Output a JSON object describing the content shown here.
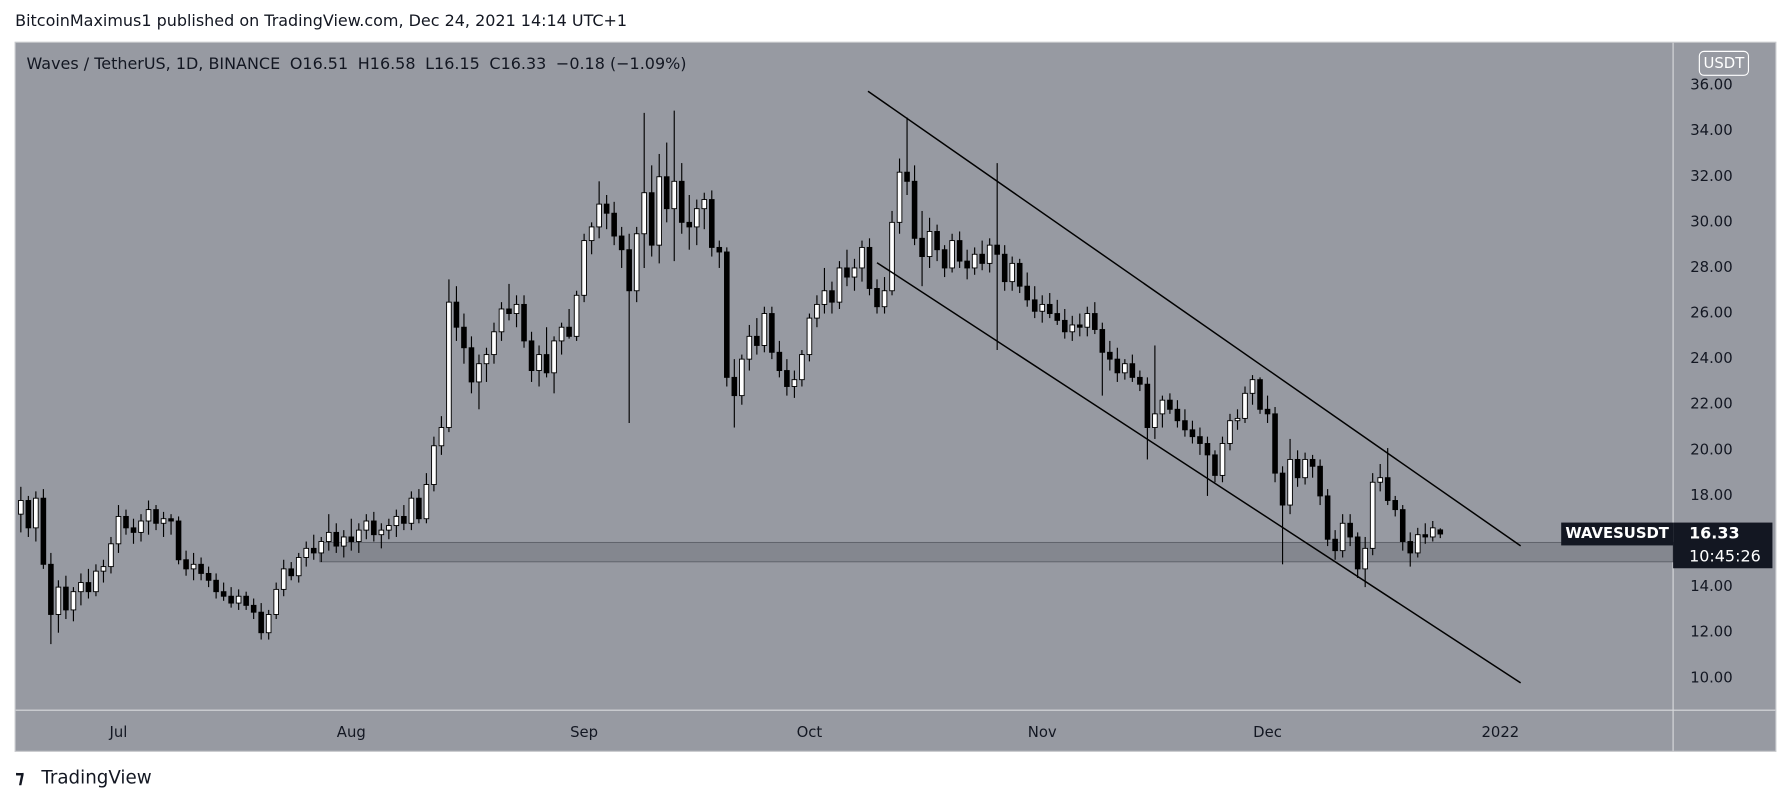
{
  "header": {
    "text": "BitcoinMaximus1 published on TradingView.com, Dec 24, 2021 14:14 UTC+1"
  },
  "footer": {
    "logo": "TradingView"
  },
  "chart_data": {
    "type": "candlestick",
    "title": "Waves / TetherUS, 1D, BINANCE",
    "ohlc_labels": [
      "O",
      "H",
      "L",
      "C"
    ],
    "change": "−0.18 (−1.09%)",
    "currency": "USDT",
    "symbol": "WAVESUSDT",
    "countdown": "10:45:26",
    "up_color": "#ffffff",
    "down_color": "#000000",
    "background": "#979aa2",
    "grid": false,
    "xlim": [
      -0.76,
      220
    ],
    "xticks": [
      {
        "value": 13,
        "label": "Jul"
      },
      {
        "value": 44,
        "label": "Aug"
      },
      {
        "value": 75,
        "label": "Sep"
      },
      {
        "value": 105,
        "label": "Oct"
      },
      {
        "value": 136,
        "label": "Nov"
      },
      {
        "value": 166,
        "label": "Dec"
      },
      {
        "value": 197,
        "label": "2022"
      }
    ],
    "ylim": [
      8.6,
      37.9
    ],
    "yticks": [
      {
        "value": 10,
        "label": "10.00"
      },
      {
        "value": 12,
        "label": "12.00"
      },
      {
        "value": 14,
        "label": "14.00"
      },
      {
        "value": 16,
        "label": "16.00"
      },
      {
        "value": 18,
        "label": "18.00"
      },
      {
        "value": 20,
        "label": "20.00"
      },
      {
        "value": 22,
        "label": "22.00"
      },
      {
        "value": 24,
        "label": "24.00"
      },
      {
        "value": 26,
        "label": "26.00"
      },
      {
        "value": 28,
        "label": "28.00"
      },
      {
        "value": 30,
        "label": "30.00"
      },
      {
        "value": 32,
        "label": "32.00"
      },
      {
        "value": 34,
        "label": "34.00"
      },
      {
        "value": 36,
        "label": "36.00"
      }
    ],
    "zone": {
      "from": 15.11,
      "to": 15.96,
      "start": 39.8
    },
    "channel": {
      "upper": [
        [
          112.8,
          35.75
        ],
        [
          199.7,
          15.81
        ]
      ],
      "lower": [
        [
          114.0,
          28.23
        ],
        [
          199.7,
          9.8
        ]
      ]
    },
    "candles": [
      [
        17.2,
        18.4,
        16.4,
        17.8
      ],
      [
        17.8,
        18.0,
        16.2,
        16.6
      ],
      [
        16.6,
        18.2,
        16.0,
        17.9
      ],
      [
        17.9,
        18.3,
        14.8,
        15.0
      ],
      [
        15.0,
        15.5,
        11.5,
        12.8
      ],
      [
        12.8,
        14.3,
        12.0,
        14.0
      ],
      [
        14.0,
        14.5,
        12.6,
        13.0
      ],
      [
        13.0,
        14.0,
        12.5,
        13.8
      ],
      [
        13.8,
        14.6,
        13.2,
        14.2
      ],
      [
        14.2,
        14.8,
        13.5,
        13.8
      ],
      [
        13.8,
        15.0,
        13.6,
        14.7
      ],
      [
        14.7,
        15.2,
        14.2,
        14.9
      ],
      [
        14.9,
        16.2,
        14.6,
        15.9
      ],
      [
        15.9,
        17.6,
        15.5,
        17.1
      ],
      [
        17.1,
        17.4,
        16.3,
        16.6
      ],
      [
        16.6,
        17.0,
        15.9,
        16.4
      ],
      [
        16.4,
        17.2,
        16.0,
        16.9
      ],
      [
        16.9,
        17.8,
        16.3,
        17.4
      ],
      [
        17.4,
        17.6,
        16.5,
        16.8
      ],
      [
        16.8,
        17.3,
        16.2,
        17.0
      ],
      [
        17.0,
        17.2,
        16.3,
        16.9
      ],
      [
        16.9,
        17.1,
        15.0,
        15.2
      ],
      [
        15.2,
        15.6,
        14.5,
        14.8
      ],
      [
        14.8,
        15.5,
        14.3,
        15.0
      ],
      [
        15.0,
        15.3,
        14.3,
        14.6
      ],
      [
        14.6,
        14.9,
        14.0,
        14.3
      ],
      [
        14.3,
        14.6,
        13.5,
        13.8
      ],
      [
        13.8,
        14.2,
        13.4,
        13.6
      ],
      [
        13.6,
        14.0,
        13.1,
        13.3
      ],
      [
        13.3,
        13.9,
        13.0,
        13.6
      ],
      [
        13.6,
        13.8,
        13.0,
        13.2
      ],
      [
        13.2,
        13.5,
        12.6,
        12.9
      ],
      [
        12.9,
        13.3,
        11.7,
        12.0
      ],
      [
        12.0,
        13.0,
        11.7,
        12.8
      ],
      [
        12.8,
        14.2,
        12.6,
        13.9
      ],
      [
        13.9,
        15.2,
        13.6,
        14.8
      ],
      [
        14.8,
        15.1,
        14.3,
        14.5
      ],
      [
        14.5,
        15.5,
        14.2,
        15.3
      ],
      [
        15.3,
        16.0,
        14.9,
        15.7
      ],
      [
        15.7,
        16.3,
        15.2,
        15.5
      ],
      [
        15.5,
        16.2,
        15.1,
        16.0
      ],
      [
        16.0,
        17.2,
        15.6,
        16.4
      ],
      [
        16.4,
        16.8,
        15.5,
        15.8
      ],
      [
        15.8,
        16.5,
        15.3,
        16.2
      ],
      [
        16.2,
        17.0,
        15.6,
        16.0
      ],
      [
        16.0,
        16.8,
        15.5,
        16.5
      ],
      [
        16.5,
        17.2,
        16.1,
        16.9
      ],
      [
        16.9,
        17.3,
        16.0,
        16.3
      ],
      [
        16.3,
        16.8,
        15.7,
        16.5
      ],
      [
        16.5,
        17.0,
        16.1,
        16.7
      ],
      [
        16.7,
        17.4,
        16.2,
        17.1
      ],
      [
        17.1,
        17.6,
        16.5,
        16.8
      ],
      [
        16.8,
        18.2,
        16.5,
        17.9
      ],
      [
        17.9,
        18.3,
        16.8,
        17.0
      ],
      [
        17.0,
        19.0,
        16.8,
        18.5
      ],
      [
        18.5,
        20.6,
        18.2,
        20.2
      ],
      [
        20.2,
        21.5,
        19.8,
        21.0
      ],
      [
        21.0,
        27.5,
        20.8,
        26.5
      ],
      [
        26.5,
        27.2,
        24.8,
        25.4
      ],
      [
        25.4,
        26.0,
        23.8,
        24.5
      ],
      [
        24.5,
        25.0,
        22.5,
        23.0
      ],
      [
        23.0,
        24.2,
        21.8,
        23.8
      ],
      [
        23.8,
        24.5,
        23.0,
        24.2
      ],
      [
        24.2,
        25.6,
        23.8,
        25.2
      ],
      [
        25.2,
        26.5,
        24.8,
        26.2
      ],
      [
        26.2,
        27.3,
        25.7,
        26.0
      ],
      [
        26.0,
        26.8,
        25.4,
        26.4
      ],
      [
        26.4,
        26.8,
        24.5,
        24.8
      ],
      [
        24.8,
        25.2,
        23.0,
        23.5
      ],
      [
        23.5,
        24.6,
        22.8,
        24.2
      ],
      [
        24.2,
        25.4,
        23.2,
        23.4
      ],
      [
        23.4,
        25.0,
        22.5,
        24.8
      ],
      [
        24.8,
        25.6,
        24.2,
        25.4
      ],
      [
        25.4,
        26.2,
        24.9,
        25.0
      ],
      [
        25.0,
        27.0,
        24.8,
        26.8
      ],
      [
        26.8,
        29.5,
        26.5,
        29.2
      ],
      [
        29.2,
        30.0,
        28.6,
        29.8
      ],
      [
        29.8,
        31.8,
        29.3,
        30.8
      ],
      [
        30.8,
        31.2,
        29.7,
        30.4
      ],
      [
        30.4,
        30.9,
        29.0,
        29.4
      ],
      [
        29.4,
        29.8,
        28.0,
        28.8
      ],
      [
        28.8,
        29.5,
        21.2,
        27.0
      ],
      [
        27.0,
        29.8,
        26.5,
        29.5
      ],
      [
        29.5,
        34.8,
        28.0,
        31.3
      ],
      [
        31.3,
        32.5,
        28.5,
        29.0
      ],
      [
        29.0,
        33.0,
        28.2,
        32.0
      ],
      [
        32.0,
        33.5,
        30.0,
        30.6
      ],
      [
        30.6,
        34.9,
        28.3,
        31.8
      ],
      [
        31.8,
        32.6,
        29.5,
        30.0
      ],
      [
        30.0,
        31.2,
        28.8,
        29.8
      ],
      [
        29.8,
        31.0,
        29.0,
        30.6
      ],
      [
        30.6,
        31.3,
        29.7,
        31.0
      ],
      [
        31.0,
        31.4,
        28.5,
        28.9
      ],
      [
        28.9,
        29.2,
        28.0,
        28.7
      ],
      [
        28.7,
        28.9,
        22.8,
        23.2
      ],
      [
        23.2,
        24.0,
        21.0,
        22.4
      ],
      [
        22.4,
        24.2,
        22.0,
        24.0
      ],
      [
        24.0,
        25.5,
        23.5,
        25.0
      ],
      [
        25.0,
        25.8,
        24.2,
        24.6
      ],
      [
        24.6,
        26.3,
        24.3,
        26.0
      ],
      [
        26.0,
        26.3,
        24.0,
        24.3
      ],
      [
        24.3,
        24.8,
        23.2,
        23.5
      ],
      [
        23.5,
        24.0,
        22.4,
        22.8
      ],
      [
        22.8,
        23.5,
        22.3,
        23.1
      ],
      [
        23.1,
        24.4,
        22.8,
        24.2
      ],
      [
        24.2,
        26.0,
        23.9,
        25.8
      ],
      [
        25.8,
        26.8,
        25.4,
        26.4
      ],
      [
        26.4,
        28.0,
        26.0,
        27.0
      ],
      [
        27.0,
        27.4,
        26.0,
        26.5
      ],
      [
        26.5,
        28.3,
        26.2,
        28.0
      ],
      [
        28.0,
        28.8,
        27.2,
        27.6
      ],
      [
        27.6,
        28.4,
        27.0,
        28.0
      ],
      [
        28.0,
        29.2,
        27.4,
        28.9
      ],
      [
        28.9,
        29.3,
        26.8,
        27.1
      ],
      [
        27.1,
        27.5,
        26.0,
        26.3
      ],
      [
        26.3,
        27.6,
        26.0,
        27.0
      ],
      [
        27.0,
        30.5,
        26.8,
        30.0
      ],
      [
        30.0,
        32.8,
        29.5,
        32.2
      ],
      [
        32.2,
        34.6,
        31.2,
        31.8
      ],
      [
        31.8,
        32.5,
        29.0,
        29.3
      ],
      [
        29.3,
        30.5,
        27.2,
        28.5
      ],
      [
        28.5,
        30.2,
        28.0,
        29.6
      ],
      [
        29.6,
        29.9,
        28.3,
        28.8
      ],
      [
        28.8,
        29.0,
        27.6,
        28.0
      ],
      [
        28.0,
        29.5,
        27.8,
        29.2
      ],
      [
        29.2,
        29.6,
        28.0,
        28.3
      ],
      [
        28.3,
        28.8,
        27.5,
        28.0
      ],
      [
        28.0,
        28.9,
        27.7,
        28.6
      ],
      [
        28.6,
        29.2,
        27.9,
        28.2
      ],
      [
        28.2,
        29.3,
        27.8,
        29.0
      ],
      [
        29.0,
        32.6,
        24.4,
        28.6
      ],
      [
        28.6,
        29.0,
        27.0,
        27.4
      ],
      [
        27.4,
        28.5,
        27.0,
        28.2
      ],
      [
        28.2,
        28.4,
        26.9,
        27.2
      ],
      [
        27.2,
        27.8,
        26.3,
        26.6
      ],
      [
        26.6,
        27.2,
        25.8,
        26.1
      ],
      [
        26.1,
        26.8,
        25.6,
        26.4
      ],
      [
        26.4,
        26.9,
        25.8,
        26.0
      ],
      [
        26.0,
        26.6,
        25.5,
        25.7
      ],
      [
        25.7,
        26.2,
        24.9,
        25.2
      ],
      [
        25.2,
        25.9,
        24.8,
        25.5
      ],
      [
        25.5,
        26.0,
        25.0,
        25.4
      ],
      [
        25.4,
        26.3,
        25.0,
        26.0
      ],
      [
        26.0,
        26.5,
        25.1,
        25.3
      ],
      [
        25.3,
        25.6,
        22.4,
        24.3
      ],
      [
        24.3,
        24.8,
        23.5,
        24.0
      ],
      [
        24.0,
        24.5,
        23.0,
        23.4
      ],
      [
        23.4,
        24.0,
        23.1,
        23.8
      ],
      [
        23.8,
        24.2,
        23.0,
        23.2
      ],
      [
        23.2,
        23.5,
        22.6,
        22.9
      ],
      [
        22.9,
        23.2,
        19.6,
        21.0
      ],
      [
        21.0,
        24.6,
        20.5,
        21.6
      ],
      [
        21.6,
        22.4,
        21.0,
        22.2
      ],
      [
        22.2,
        22.5,
        21.6,
        21.8
      ],
      [
        21.8,
        22.2,
        21.0,
        21.3
      ],
      [
        21.3,
        21.8,
        20.6,
        20.9
      ],
      [
        20.9,
        21.3,
        20.3,
        20.6
      ],
      [
        20.6,
        21.0,
        19.8,
        20.3
      ],
      [
        20.3,
        20.6,
        18.0,
        19.8
      ],
      [
        19.8,
        20.0,
        18.6,
        18.9
      ],
      [
        18.9,
        20.6,
        18.6,
        20.3
      ],
      [
        20.3,
        21.6,
        20.0,
        21.3
      ],
      [
        21.3,
        21.8,
        20.9,
        21.4
      ],
      [
        21.4,
        22.8,
        21.2,
        22.5
      ],
      [
        22.5,
        23.3,
        22.0,
        23.1
      ],
      [
        23.1,
        23.2,
        21.6,
        21.8
      ],
      [
        21.8,
        22.4,
        21.2,
        21.6
      ],
      [
        21.6,
        21.9,
        18.6,
        19.0
      ],
      [
        19.0,
        19.3,
        15.0,
        17.6
      ],
      [
        17.6,
        20.5,
        17.2,
        19.6
      ],
      [
        19.6,
        20.0,
        18.4,
        18.8
      ],
      [
        18.8,
        19.9,
        18.5,
        19.6
      ],
      [
        19.6,
        19.8,
        18.8,
        19.3
      ],
      [
        19.3,
        19.6,
        17.6,
        18.0
      ],
      [
        18.0,
        18.3,
        15.8,
        16.1
      ],
      [
        16.1,
        16.5,
        15.2,
        15.6
      ],
      [
        15.6,
        17.2,
        15.3,
        16.8
      ],
      [
        16.8,
        17.2,
        15.8,
        16.2
      ],
      [
        16.2,
        16.4,
        14.4,
        14.8
      ],
      [
        14.8,
        16.2,
        14.0,
        15.7
      ],
      [
        15.7,
        19.0,
        15.4,
        18.6
      ],
      [
        18.6,
        19.4,
        18.2,
        18.8
      ],
      [
        18.8,
        20.1,
        17.6,
        17.8
      ],
      [
        17.8,
        18.0,
        17.1,
        17.4
      ],
      [
        17.4,
        17.6,
        15.6,
        16.0
      ],
      [
        16.0,
        16.4,
        14.9,
        15.5
      ],
      [
        15.5,
        16.6,
        15.3,
        16.3
      ],
      [
        16.3,
        16.8,
        15.9,
        16.2
      ],
      [
        16.2,
        16.9,
        16.0,
        16.6
      ],
      [
        16.51,
        16.58,
        16.15,
        16.33
      ]
    ]
  }
}
